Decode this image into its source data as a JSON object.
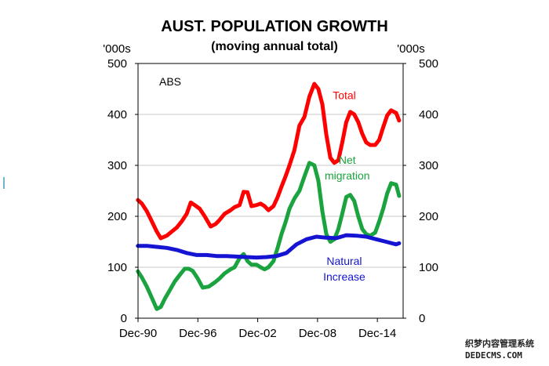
{
  "chart_data": {
    "type": "line",
    "title": "AUST. POPULATION GROWTH",
    "subtitle": "(moving annual total)",
    "ylabel_left": "'000s",
    "ylabel_right": "'000s",
    "ylim": [
      0,
      500
    ],
    "yticks": [
      "0",
      "100",
      "200",
      "300",
      "400",
      "500"
    ],
    "xlim": [
      1990.917,
      2017.5
    ],
    "xticks": [
      {
        "label": "Dec-90",
        "x": 1990.917
      },
      {
        "label": "Dec-96",
        "x": 1996.917
      },
      {
        "label": "Dec-02",
        "x": 2002.917
      },
      {
        "label": "Dec-08",
        "x": 2008.917
      },
      {
        "label": "Dec-14",
        "x": 2014.917
      }
    ],
    "source_note": "ABS",
    "grid": "horizontal",
    "series": [
      {
        "name": "Total",
        "label_lines": [
          "Total"
        ],
        "color": "#ff0000",
        "x": [
          1990.9,
          1991.3,
          1991.8,
          1992.3,
          1992.8,
          1993.2,
          1993.8,
          1994.3,
          1994.8,
          1995.3,
          1995.8,
          1996.2,
          1996.6,
          1997.1,
          1997.6,
          1998.2,
          1998.7,
          1999.1,
          1999.6,
          2000.2,
          2000.6,
          2001.1,
          2001.5,
          2001.9,
          2002.3,
          2002.8,
          2003.2,
          2003.6,
          2004.0,
          2004.5,
          2004.9,
          2005.3,
          2005.7,
          2006.1,
          2006.6,
          2007.1,
          2007.6,
          2008.1,
          2008.6,
          2009.0,
          2009.4,
          2009.8,
          2010.2,
          2010.6,
          2011.0,
          2011.4,
          2011.8,
          2012.2,
          2012.6,
          2013.0,
          2013.4,
          2013.8,
          2014.2,
          2014.7,
          2015.1,
          2015.5,
          2015.9,
          2016.3,
          2016.8,
          2017.1
        ],
        "y": [
          232,
          225,
          210,
          190,
          170,
          157,
          162,
          170,
          178,
          190,
          205,
          227,
          222,
          215,
          200,
          180,
          185,
          193,
          205,
          212,
          218,
          222,
          248,
          247,
          220,
          222,
          225,
          220,
          212,
          220,
          237,
          258,
          278,
          300,
          330,
          378,
          395,
          435,
          460,
          450,
          420,
          360,
          315,
          305,
          310,
          345,
          385,
          405,
          400,
          385,
          362,
          345,
          340,
          340,
          350,
          375,
          398,
          408,
          403,
          388
        ],
        "label_x": 2011.6,
        "label_y": 430
      },
      {
        "name": "Net migration",
        "label_lines": [
          "Net",
          "migration"
        ],
        "color": "#1aa33e",
        "x": [
          1990.9,
          1991.3,
          1991.8,
          1992.3,
          1992.8,
          1993.2,
          1993.6,
          1994.1,
          1994.6,
          1995.1,
          1995.6,
          1996.0,
          1996.4,
          1996.9,
          1997.4,
          1998.0,
          1998.6,
          1999.1,
          1999.6,
          2000.2,
          2000.6,
          2001.1,
          2001.5,
          2001.9,
          2002.3,
          2002.8,
          2003.2,
          2003.6,
          2004.0,
          2004.5,
          2004.9,
          2005.3,
          2005.7,
          2006.1,
          2006.6,
          2007.1,
          2007.6,
          2008.1,
          2008.6,
          2009.0,
          2009.4,
          2009.8,
          2010.2,
          2010.6,
          2011.0,
          2011.4,
          2011.8,
          2012.2,
          2012.6,
          2013.0,
          2013.4,
          2013.8,
          2014.2,
          2014.7,
          2015.1,
          2015.5,
          2015.9,
          2016.3,
          2016.8,
          2017.1
        ],
        "y": [
          92,
          80,
          62,
          40,
          18,
          22,
          38,
          55,
          72,
          85,
          97,
          97,
          93,
          78,
          60,
          62,
          70,
          78,
          88,
          96,
          100,
          118,
          126,
          112,
          105,
          105,
          100,
          96,
          100,
          112,
          137,
          165,
          188,
          215,
          235,
          250,
          278,
          305,
          300,
          270,
          210,
          165,
          150,
          155,
          175,
          205,
          238,
          242,
          230,
          200,
          175,
          165,
          162,
          168,
          190,
          215,
          245,
          265,
          262,
          240
        ],
        "label_x": 2011.9,
        "label_y": 303
      },
      {
        "name": "Natural Increase",
        "label_lines": [
          "Natural",
          "Increase"
        ],
        "color": "#1414d2",
        "x": [
          1990.9,
          1991.8,
          1992.8,
          1993.8,
          1994.8,
          1995.8,
          1996.8,
          1997.8,
          1998.8,
          1999.8,
          2000.8,
          2001.8,
          2002.8,
          2003.8,
          2004.8,
          2005.8,
          2006.8,
          2007.8,
          2008.8,
          2009.8,
          2010.8,
          2011.8,
          2012.8,
          2013.8,
          2014.8,
          2015.8,
          2016.8,
          2017.1
        ],
        "y": [
          142,
          142,
          140,
          138,
          134,
          128,
          124,
          124,
          122,
          122,
          121,
          120,
          119,
          120,
          122,
          128,
          145,
          155,
          160,
          158,
          157,
          163,
          162,
          160,
          155,
          150,
          145,
          147
        ],
        "label_x": 2011.6,
        "label_y": 105
      }
    ]
  },
  "watermark": {
    "line1": "织梦内容管理系统",
    "line2": "DEDECMS.COM"
  }
}
